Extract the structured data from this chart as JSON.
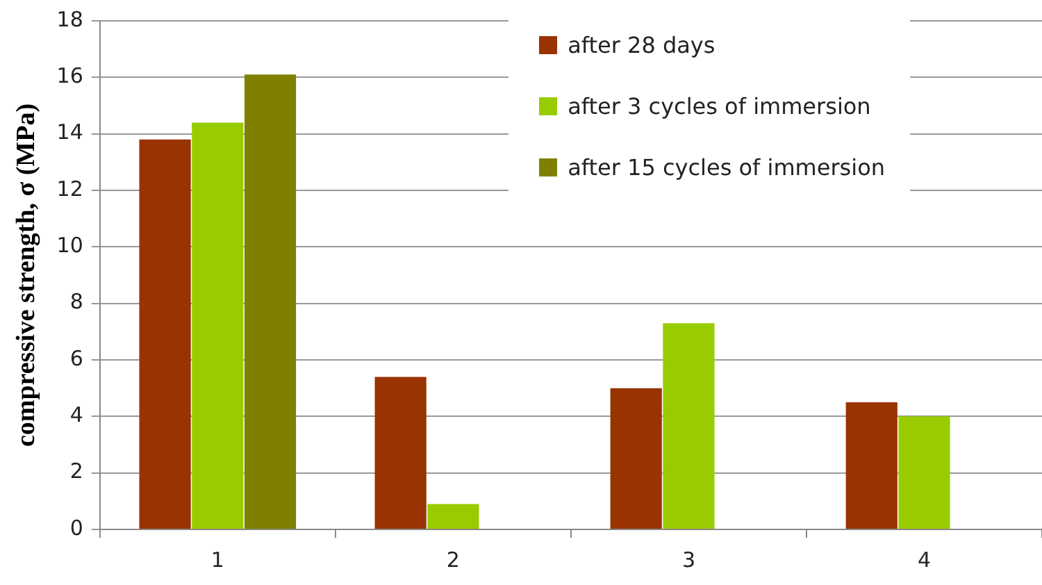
{
  "chart_data": {
    "type": "bar",
    "ylabel": "compressive strength, σ (MPa)",
    "categories": [
      "1",
      "2",
      "3",
      "4"
    ],
    "series": [
      {
        "name": "after 28 days",
        "color": "#993300",
        "values": [
          13.8,
          5.4,
          5.0,
          4.5
        ]
      },
      {
        "name": "after 3 cycles of immersion",
        "color": "#99cc00",
        "values": [
          14.4,
          0.9,
          7.3,
          4.0
        ]
      },
      {
        "name": "after 15 cycles of immersion",
        "color": "#808000",
        "values": [
          16.1,
          null,
          null,
          null
        ]
      }
    ],
    "ylim": [
      0,
      18
    ],
    "yticks": [
      0,
      2,
      4,
      6,
      8,
      10,
      12,
      14,
      16,
      18
    ],
    "grid": "y",
    "legend": "top right"
  }
}
